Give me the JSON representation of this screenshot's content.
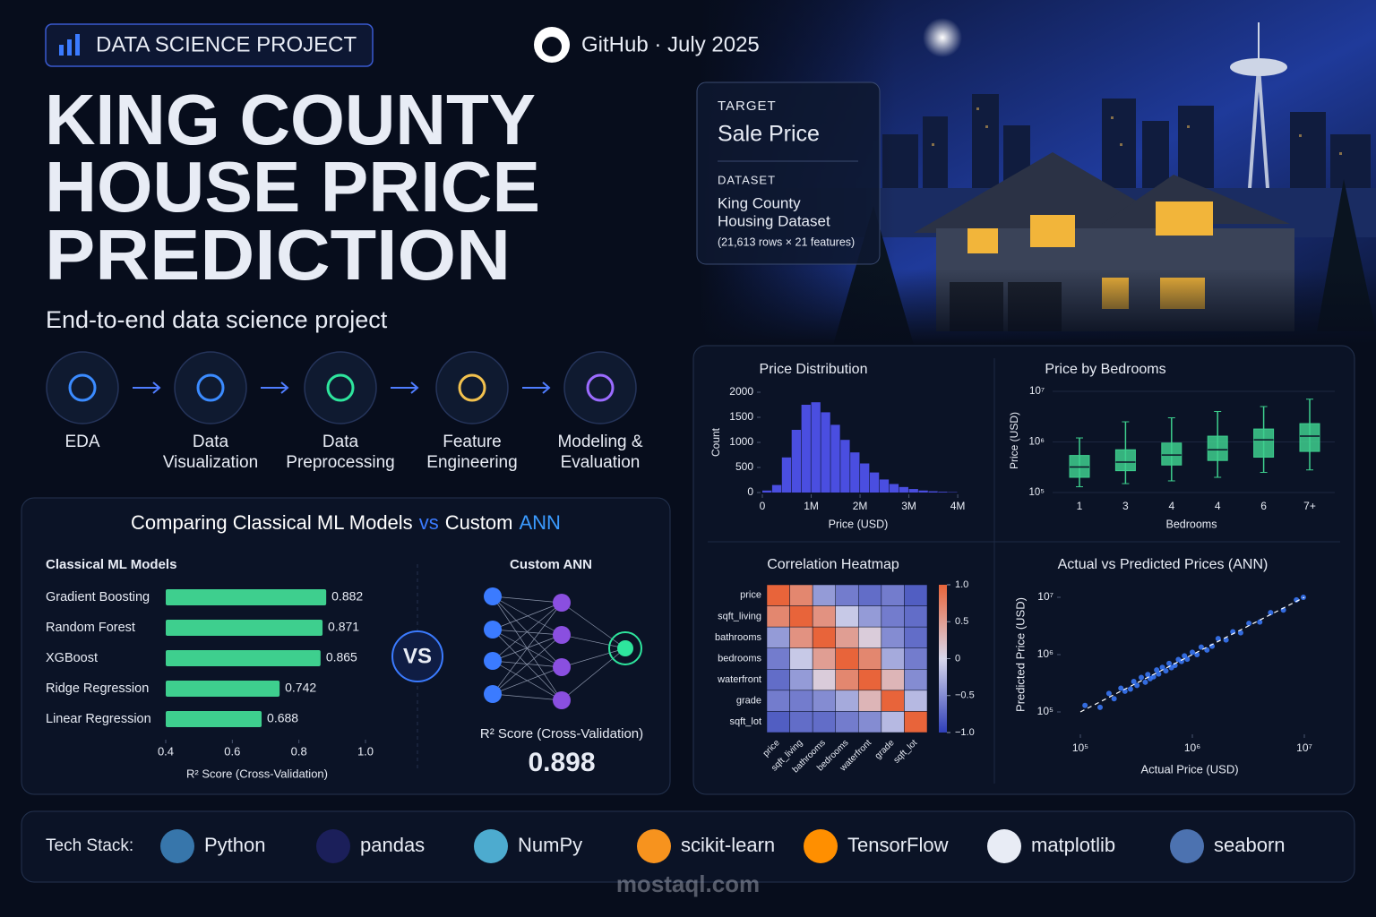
{
  "header": {
    "badge": "DATA SCIENCE PROJECT",
    "source": "GitHub · July 2025",
    "title_lines": [
      "KING COUNTY",
      "HOUSE PRICE",
      "PREDICTION"
    ],
    "subtitle": "End-to-end data science project"
  },
  "info_card": {
    "target_label": "TARGET",
    "target": "Sale Price",
    "dataset_label": "DATASET",
    "dataset_lines": [
      "King County",
      "Housing Dataset"
    ],
    "dataset_size": "(21,613 rows × 21 features)"
  },
  "pipeline": {
    "steps": [
      [
        "EDA"
      ],
      [
        "Data",
        "Visualization"
      ],
      [
        "Data",
        "Preprocessing"
      ],
      [
        "Feature",
        "Engineering"
      ],
      [
        "Modeling &",
        "Evaluation"
      ]
    ]
  },
  "comparison": {
    "title_parts": [
      "Comparing Classical ML Models",
      "vs",
      "Custom",
      "ANN"
    ],
    "vs": "VS"
  },
  "ann": {
    "title": "Custom ANN",
    "score_label": "R² Score (Cross-Validation)",
    "score": 0.898
  },
  "tech_stack": {
    "label": "Tech Stack:",
    "items": [
      "Python",
      "pandas",
      "NumPy",
      "scikit-learn",
      "TensorFlow",
      "matplotlib",
      "seaborn"
    ]
  },
  "watermark": "mostaql.com",
  "chart_data": [
    {
      "type": "bar",
      "orientation": "horizontal",
      "title": "Classical ML Models",
      "categories": [
        "Gradient Boosting",
        "Random Forest",
        "XGBoost",
        "Ridge Regression",
        "Linear Regression"
      ],
      "category_colors": [
        "#3ecf8e",
        "#e8ecf5",
        "#e8ecf5",
        "#e8ecf5",
        "#e8ecf5"
      ],
      "values": [
        0.882,
        0.871,
        0.865,
        0.742,
        0.688
      ],
      "color": "#3ecf8e",
      "xlim": [
        0.4,
        1.0
      ],
      "xticks": [
        0.4,
        0.6,
        0.8,
        {
          "value": 1,
          "label": "1.0"
        }
      ],
      "xlabel": "R² Score (Cross-Validation)"
    },
    {
      "type": "histogram",
      "title": "Price Distribution",
      "bins": [
        0,
        200000,
        400000,
        600000,
        800000,
        1000000,
        1200000,
        1400000,
        1600000,
        1800000,
        2000000,
        2200000,
        2400000,
        2600000,
        2800000,
        3000000,
        3200000,
        3400000,
        3600000,
        3800000,
        4000000
      ],
      "counts": [
        40,
        150,
        700,
        1250,
        1750,
        1800,
        1600,
        1350,
        1050,
        800,
        580,
        400,
        260,
        170,
        110,
        70,
        40,
        25,
        15,
        8
      ],
      "color": "#4a4ee0",
      "xlim": [
        0,
        4200000
      ],
      "xticks": [
        0,
        {
          "value": 1000000,
          "label": "1M"
        },
        {
          "value": 2000000,
          "label": "2M"
        },
        {
          "value": 3000000,
          "label": "3M"
        },
        {
          "value": 4000000,
          "label": "4M"
        }
      ],
      "ylim": [
        0,
        2000
      ],
      "yticks": [
        0,
        500,
        1000,
        1500,
        2000
      ],
      "xlabel": "Price (USD)",
      "ylabel": "Count"
    },
    {
      "type": "box",
      "title": "Price by Bedrooms",
      "categories": [
        "1",
        "3",
        "4",
        "4",
        "6",
        "7+"
      ],
      "boxes": [
        {
          "min": 130000,
          "q1": 200000,
          "median": 320000,
          "q3": 540000,
          "max": 1200000
        },
        {
          "min": 150000,
          "q1": 270000,
          "median": 400000,
          "q3": 700000,
          "max": 2500000
        },
        {
          "min": 170000,
          "q1": 350000,
          "median": 550000,
          "q3": 950000,
          "max": 3000000
        },
        {
          "min": 200000,
          "q1": 430000,
          "median": 700000,
          "q3": 1300000,
          "max": 4000000
        },
        {
          "min": 250000,
          "q1": 500000,
          "median": 1100000,
          "q3": 1800000,
          "max": 5000000
        },
        {
          "min": 280000,
          "q1": 650000,
          "median": 1300000,
          "q3": 2300000,
          "max": 7000000
        }
      ],
      "color": "#3ecf8e",
      "log_scale": true,
      "grid": true,
      "ylim": [
        100000,
        10000000
      ],
      "yticks": [
        {
          "value": 100000,
          "label": "10⁵"
        },
        {
          "value": 1000000,
          "label": "10⁶"
        },
        {
          "value": 10000000,
          "label": "10⁷"
        }
      ],
      "xlabel": "Bedrooms",
      "ylabel": "Price (USD)"
    },
    {
      "type": "heatmap",
      "title": "Correlation Heatmap",
      "labels": [
        "price",
        "sqft_living",
        "bathrooms",
        "bedrooms",
        "waterfront",
        "grade",
        "sqft_lot"
      ],
      "values": [
        [
          1,
          0.7,
          -0.4,
          -0.6,
          -0.7,
          -0.6,
          -0.8
        ],
        [
          0.7,
          1,
          0.6,
          -0.1,
          -0.4,
          -0.6,
          -0.7
        ],
        [
          -0.4,
          0.6,
          1,
          0.5,
          0.1,
          -0.5,
          -0.7
        ],
        [
          -0.6,
          -0.1,
          0.5,
          1,
          0.7,
          -0.3,
          -0.6
        ],
        [
          -0.7,
          -0.4,
          0.1,
          0.7,
          1,
          0.3,
          -0.5
        ],
        [
          -0.6,
          -0.6,
          -0.5,
          -0.3,
          0.3,
          1,
          -0.2
        ],
        [
          -0.8,
          -0.7,
          -0.7,
          -0.6,
          -0.5,
          -0.2,
          1
        ]
      ],
      "colormap": [
        "#2f3fb8",
        "#d8d8ec",
        "#e8643a"
      ],
      "zlim": [
        -1,
        1
      ],
      "zticks": [
        {
          "value": 1,
          "label": "1.0"
        },
        0.5,
        0,
        {
          "value": -0.5,
          "label": "−0.5"
        },
        {
          "value": -1,
          "label": "−1.0"
        }
      ]
    },
    {
      "type": "scatter",
      "title": "Actual vs Predicted Prices (ANN)",
      "x": [
        110000,
        150000,
        180000,
        200000,
        230000,
        250000,
        280000,
        300000,
        320000,
        350000,
        380000,
        400000,
        420000,
        450000,
        480000,
        500000,
        540000,
        580000,
        620000,
        650000,
        700000,
        750000,
        800000,
        850000,
        900000,
        1000000,
        1100000,
        1200000,
        1350000,
        1500000,
        1700000,
        2000000,
        2300000,
        2700000,
        3200000,
        4000000,
        5000000,
        6500000,
        8500000,
        9800000
      ],
      "y": [
        130000,
        120000,
        210000,
        170000,
        260000,
        230000,
        250000,
        340000,
        290000,
        400000,
        330000,
        450000,
        380000,
        410000,
        540000,
        460000,
        600000,
        520000,
        700000,
        590000,
        650000,
        820000,
        760000,
        950000,
        830000,
        1100000,
        1000000,
        1350000,
        1200000,
        1400000,
        1900000,
        1800000,
        2500000,
        2400000,
        3500000,
        3700000,
        5400000,
        6000000,
        9000000,
        10000000
      ],
      "color": "#3b7bff",
      "log_scale": true,
      "reference_line": true,
      "xlim": [
        100000,
        10000000
      ],
      "ylim": [
        100000,
        10000000
      ],
      "xticks": [
        {
          "value": 100000,
          "label": "10⁵"
        },
        {
          "value": 1000000,
          "label": "10⁶"
        },
        {
          "value": 10000000,
          "label": "10⁷"
        }
      ],
      "yticks": [
        {
          "value": 100000,
          "label": "10⁵"
        },
        {
          "value": 1000000,
          "label": "10⁶"
        },
        {
          "value": 10000000,
          "label": "10⁷"
        }
      ],
      "xlabel": "Actual Price (USD)",
      "ylabel": "Predicted Price (USD)"
    }
  ]
}
